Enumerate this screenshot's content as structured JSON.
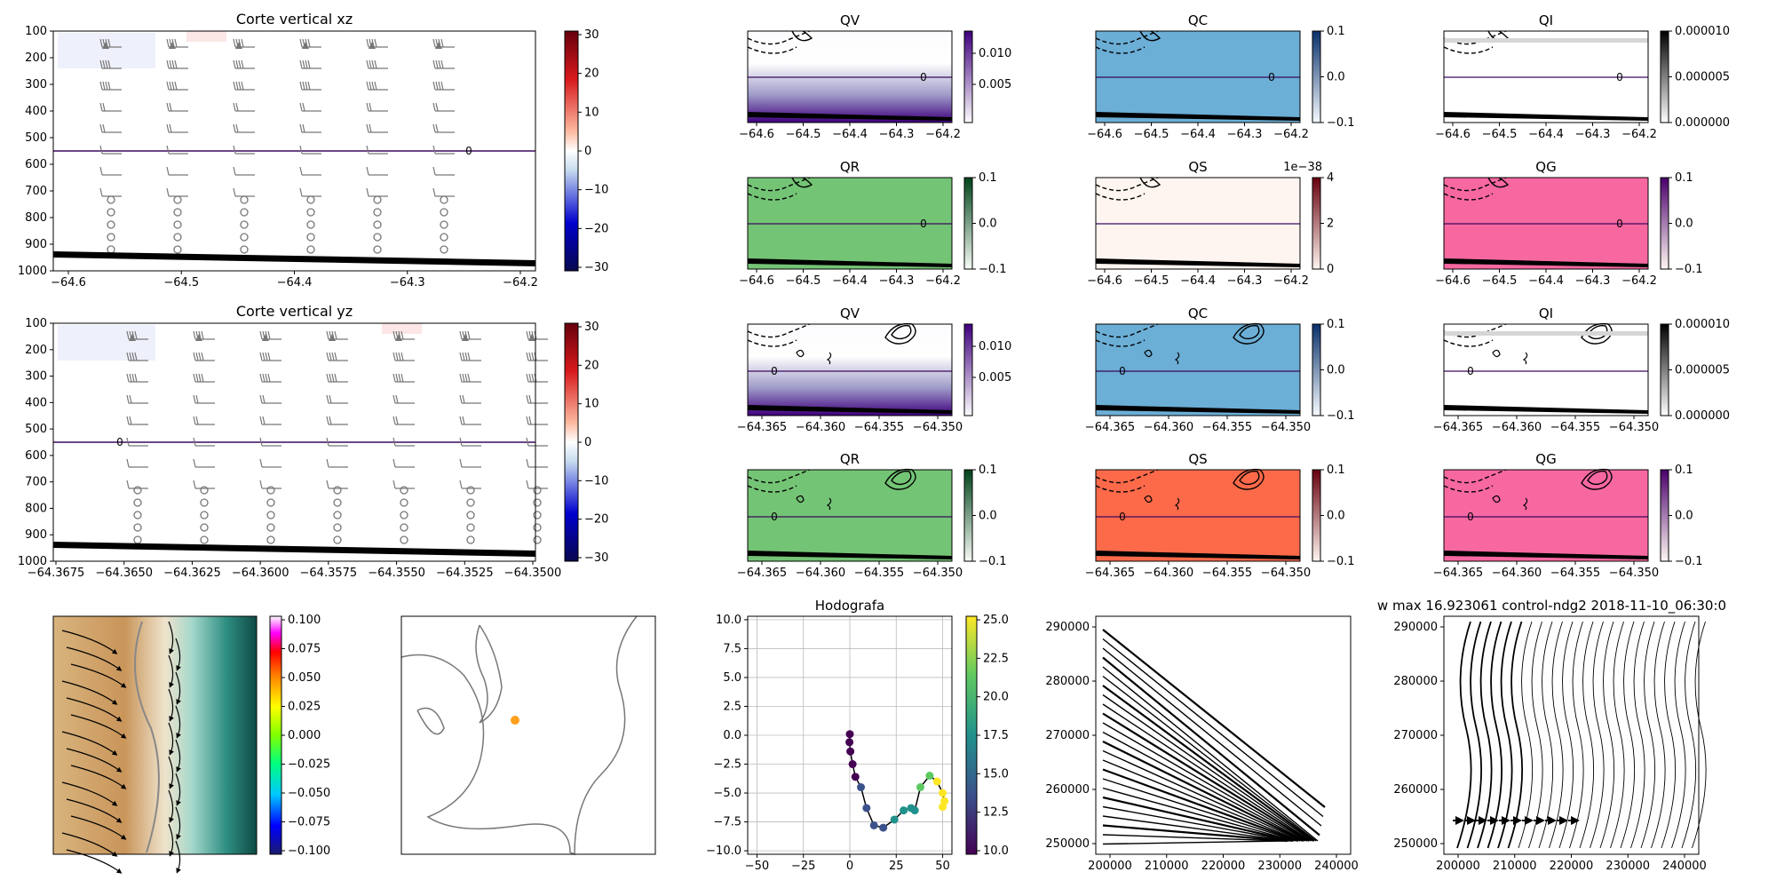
{
  "figure": {
    "colors": {
      "axis": "#000000",
      "contour": "#000000",
      "zero_line": "#3b0a5e",
      "grey": "#777777",
      "grid": "#bbbbbb"
    }
  },
  "cross_sections": [
    {
      "title": "Corte vertical xz",
      "xticks": [
        "−64.6",
        "−64.5",
        "−64.4",
        "−64.3",
        "−64.2"
      ],
      "yticks": [
        "100",
        "200",
        "300",
        "400",
        "500",
        "600",
        "700",
        "800",
        "900",
        "1000"
      ],
      "zero_label": "0",
      "colorbar_ticks": [
        "30",
        "20",
        "10",
        "0",
        "−10",
        "−20",
        "−30"
      ]
    },
    {
      "title": "Corte vertical yz",
      "xticks": [
        "−64.3675",
        "−64.3650",
        "−64.3625",
        "−64.3600",
        "−64.3575",
        "−64.3550",
        "−64.3525",
        "−64.3500"
      ],
      "yticks": [
        "100",
        "200",
        "300",
        "400",
        "500",
        "600",
        "700",
        "800",
        "900",
        "1000"
      ],
      "zero_label": "0",
      "colorbar_ticks": [
        "30",
        "20",
        "10",
        "0",
        "−10",
        "−20",
        "−30"
      ]
    }
  ],
  "species_panels": [
    {
      "title": "QV",
      "fill": "#6a51a3",
      "gradient": true,
      "cbar_ticks": [
        "0.010",
        "0.005"
      ],
      "cbar_colors": [
        "#fcfbfd",
        "#3f007d"
      ],
      "xticks": [
        "−64.6",
        "−64.5",
        "−64.4",
        "−64.3",
        "−64.2"
      ],
      "zero_label": "0"
    },
    {
      "title": "QC",
      "fill": "#6baed6",
      "gradient": false,
      "cbar_ticks": [
        "0.1",
        "0.0",
        "−0.1"
      ],
      "cbar_colors": [
        "#f7fbff",
        "#08306b"
      ],
      "xticks": [
        "−64.6",
        "−64.5",
        "−64.4",
        "−64.3",
        "−64.2"
      ],
      "zero_label": "0"
    },
    {
      "title": "QI",
      "fill": "#ffffff",
      "gradient": false,
      "cbar_ticks": [
        "0.000010",
        "0.000005",
        "0.000000"
      ],
      "cbar_colors": [
        "#ffffff",
        "#000000"
      ],
      "xticks": [
        "−64.6",
        "−64.5",
        "−64.4",
        "−64.3",
        "−64.2"
      ],
      "zero_label": "0"
    },
    {
      "title": "QR",
      "fill": "#74c476",
      "gradient": false,
      "cbar_ticks": [
        "0.1",
        "0.0",
        "−0.1"
      ],
      "cbar_colors": [
        "#f7fcf5",
        "#00441b"
      ],
      "xticks": [
        "−64.6",
        "−64.5",
        "−64.4",
        "−64.3",
        "−64.2"
      ],
      "zero_label": "0"
    },
    {
      "title": "QS",
      "fill": "#fff5f0",
      "gradient": false,
      "cbar_ticks": [
        "4",
        "2",
        "0"
      ],
      "cbar_colors": [
        "#fff5f0",
        "#67000d"
      ],
      "xticks": [
        "−64.6",
        "−64.5",
        "−64.4",
        "−64.3",
        "−64.2"
      ],
      "zero_label": "",
      "offset_text": "1e−38"
    },
    {
      "title": "QG",
      "fill": "#f768a1",
      "gradient": false,
      "cbar_ticks": [
        "0.1",
        "0.0",
        "−0.1"
      ],
      "cbar_colors": [
        "#fff7f3",
        "#49006a"
      ],
      "xticks": [
        "−64.6",
        "−64.5",
        "−64.4",
        "−64.3",
        "−64.2"
      ],
      "zero_label": "0"
    },
    {
      "title": "QV",
      "fill": "#6a51a3",
      "gradient": true,
      "cbar_ticks": [
        "0.010",
        "0.005"
      ],
      "cbar_colors": [
        "#fcfbfd",
        "#3f007d"
      ],
      "xticks": [
        "−64.365",
        "−64.360",
        "−64.355",
        "−64.350"
      ],
      "zero_label": "0"
    },
    {
      "title": "QC",
      "fill": "#6baed6",
      "gradient": false,
      "cbar_ticks": [
        "0.1",
        "0.0",
        "−0.1"
      ],
      "cbar_colors": [
        "#f7fbff",
        "#08306b"
      ],
      "xticks": [
        "−64.365",
        "−64.360",
        "−64.355",
        "−64.350"
      ],
      "zero_label": "0"
    },
    {
      "title": "QI",
      "fill": "#ffffff",
      "gradient": false,
      "cbar_ticks": [
        "0.000010",
        "0.000005",
        "0.000000"
      ],
      "cbar_colors": [
        "#ffffff",
        "#000000"
      ],
      "xticks": [
        "−64.365",
        "−64.360",
        "−64.355",
        "−64.350"
      ],
      "zero_label": "0"
    },
    {
      "title": "QR",
      "fill": "#74c476",
      "gradient": false,
      "cbar_ticks": [
        "0.1",
        "0.0",
        "−0.1"
      ],
      "cbar_colors": [
        "#f7fcf5",
        "#00441b"
      ],
      "xticks": [
        "−64.365",
        "−64.360",
        "−64.355",
        "−64.350"
      ],
      "zero_label": "0"
    },
    {
      "title": "QS",
      "fill": "#fc6a4a",
      "gradient": false,
      "cbar_ticks": [
        "0.1",
        "0.0",
        "−0.1"
      ],
      "cbar_colors": [
        "#fff5f0",
        "#67000d"
      ],
      "xticks": [
        "−64.365",
        "−64.360",
        "−64.355",
        "−64.350"
      ],
      "zero_label": "0"
    },
    {
      "title": "QG",
      "fill": "#f768a1",
      "gradient": false,
      "cbar_ticks": [
        "0.1",
        "0.0",
        "−0.1"
      ],
      "cbar_colors": [
        "#fff7f3",
        "#49006a"
      ],
      "xticks": [
        "−64.365",
        "−64.360",
        "−64.355",
        "−64.350"
      ],
      "zero_label": "0"
    }
  ],
  "map_panel": {
    "cbar_ticks": [
      "0.100",
      "0.075",
      "0.050",
      "0.025",
      "0.000",
      "−0.025",
      "−0.050",
      "−0.075",
      "−0.100"
    ]
  },
  "chart_data": [
    {
      "type": "line",
      "title": "Hodografa",
      "xlim": [
        -55,
        55
      ],
      "ylim": [
        -10.3,
        10.3
      ],
      "xticks": [
        "−50",
        "−25",
        "0",
        "25",
        "50"
      ],
      "yticks": [
        "10.0",
        "7.5",
        "5.0",
        "2.5",
        "0.0",
        "−2.5",
        "−5.0",
        "−7.5",
        "−10.0"
      ],
      "grid": true,
      "colorbar_ticks": [
        "25.0",
        "22.5",
        "20.0",
        "17.5",
        "15.0",
        "12.5",
        "10.0"
      ],
      "colorbar_range": [
        8.5,
        27
      ],
      "points": [
        {
          "u": 0.0,
          "v": 0.1,
          "c": 9.0
        },
        {
          "u": -0.2,
          "v": -0.6,
          "c": 9.4
        },
        {
          "u": 0.3,
          "v": -1.4,
          "c": 9.8
        },
        {
          "u": 1.5,
          "v": -2.5,
          "c": 10.6
        },
        {
          "u": 3.0,
          "v": -3.6,
          "c": 11.5
        },
        {
          "u": 6.0,
          "v": -4.5,
          "c": 12.5
        },
        {
          "u": 9.0,
          "v": -6.3,
          "c": 13.5
        },
        {
          "u": 13.0,
          "v": -7.8,
          "c": 14.5
        },
        {
          "u": 18.0,
          "v": -8.0,
          "c": 15.5
        },
        {
          "u": 24.0,
          "v": -7.3,
          "c": 16.5
        },
        {
          "u": 29.0,
          "v": -6.5,
          "c": 17.5
        },
        {
          "u": 33.0,
          "v": -6.3,
          "c": 18.5
        },
        {
          "u": 35.0,
          "v": -6.5,
          "c": 19.5
        },
        {
          "u": 38.0,
          "v": -4.5,
          "c": 20.5
        },
        {
          "u": 43.0,
          "v": -3.5,
          "c": 22.0
        },
        {
          "u": 47.0,
          "v": -4.0,
          "c": 23.5
        },
        {
          "u": 50.0,
          "v": -5.0,
          "c": 24.5
        },
        {
          "u": 51.0,
          "v": -5.7,
          "c": 25.5
        },
        {
          "u": 50.0,
          "v": -6.2,
          "c": 26.5
        }
      ]
    }
  ],
  "streamline_panels": [
    {
      "title": "",
      "xticks": [
        "200000",
        "210000",
        "220000",
        "230000",
        "240000"
      ],
      "yticks": [
        "290000",
        "280000",
        "270000",
        "260000",
        "250000"
      ]
    },
    {
      "title": "w max 16.923061 control-ndg2 2018-11-10_06:30:0",
      "xticks": [
        "200000",
        "210000",
        "220000",
        "230000",
        "240000"
      ],
      "yticks": [
        "290000",
        "280000",
        "270000",
        "260000",
        "250000"
      ]
    }
  ]
}
